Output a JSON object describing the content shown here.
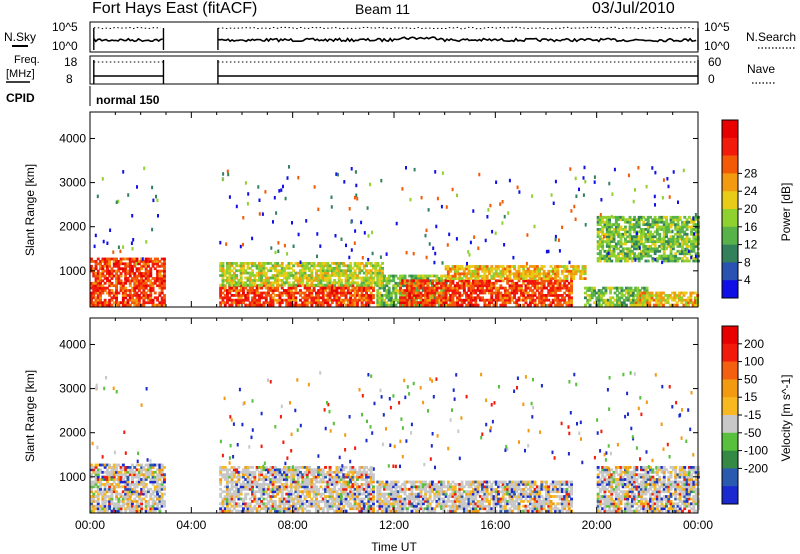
{
  "header": {
    "title": "Fort Hays East (fitACF)",
    "beam": "Beam 11",
    "date": "03/Jul/2010"
  },
  "status_panels": {
    "nsky_label": "N.Sky",
    "nsearch_label": "N.Search",
    "noise_tick_high": "10^5",
    "noise_tick_low": "10^0",
    "freq_label_1": "Freq.",
    "freq_label_2": "[MHz]",
    "freq_tick_high": "18",
    "freq_tick_low": "8",
    "nave_label": "Nave",
    "nave_tick_high": "60",
    "nave_tick_low": "0",
    "cpid_label": "CPID",
    "cpid_value": "normal 150"
  },
  "chart_data": [
    {
      "type": "heatmap",
      "panel": "power",
      "xlabel": "",
      "ylabel": "Slant Range [km]",
      "xlim": [
        0,
        24
      ],
      "ylim": [
        180,
        4600
      ],
      "y_ticks": [
        1000,
        2000,
        3000,
        4000
      ],
      "colorbar": {
        "label": "Power [dB]",
        "ticks": [
          "4",
          "8",
          "12",
          "16",
          "20",
          "24",
          "28"
        ],
        "colors": [
          "#1010e6",
          "#2a52b0",
          "#33815c",
          "#57b24a",
          "#8fd12e",
          "#e8cc18",
          "#f29a10",
          "#f25a08",
          "#f21a0a",
          "#e80000"
        ]
      },
      "regions": [
        {
          "t": [
            0.0,
            2.9
          ],
          "r": [
            200,
            1300
          ],
          "value": 26
        },
        {
          "t": [
            5.1,
            11.2
          ],
          "r": [
            200,
            650
          ],
          "value": 28
        },
        {
          "t": [
            5.1,
            11.5
          ],
          "r": [
            650,
            1200
          ],
          "value": 16
        },
        {
          "t": [
            11.3,
            14.0
          ],
          "r": [
            200,
            900
          ],
          "value": 12
        },
        {
          "t": [
            12.2,
            19.0
          ],
          "r": [
            200,
            800
          ],
          "value": 28
        },
        {
          "t": [
            14.0,
            19.5
          ],
          "r": [
            800,
            1100
          ],
          "value": 20
        },
        {
          "t": [
            19.5,
            22.0
          ],
          "r": [
            200,
            600
          ],
          "value": 12
        },
        {
          "t": [
            21.5,
            24.0
          ],
          "r": [
            200,
            500
          ],
          "value": 20
        },
        {
          "t": [
            20.0,
            24.0
          ],
          "r": [
            1200,
            2200
          ],
          "value": 12
        }
      ]
    },
    {
      "type": "heatmap",
      "panel": "velocity",
      "xlabel": "Time UT",
      "ylabel": "Slant Range [km]",
      "xlim": [
        0,
        24
      ],
      "ylim": [
        180,
        4600
      ],
      "x_ticks": [
        "00:00",
        "04:00",
        "08:00",
        "12:00",
        "16:00",
        "20:00",
        "00:00"
      ],
      "y_ticks": [
        1000,
        2000,
        3000,
        4000
      ],
      "colorbar": {
        "label": "Velocity [m s^-1]",
        "ticks": [
          "200",
          "100",
          "50",
          "15",
          "-15",
          "-50",
          "-100",
          "-200"
        ],
        "colors": [
          "#1a2ad0",
          "#2a5ab0",
          "#348a44",
          "#58c03c",
          "#c8c8c8",
          "#f8b820",
          "#f29a10",
          "#f26010",
          "#f21a0a",
          "#e80000"
        ]
      },
      "regions": [
        {
          "t": [
            0.0,
            2.9
          ],
          "r": [
            200,
            1300
          ],
          "value": 0
        },
        {
          "t": [
            5.1,
            11.2
          ],
          "r": [
            200,
            1200
          ],
          "value": 0
        },
        {
          "t": [
            11.3,
            19.0
          ],
          "r": [
            200,
            900
          ],
          "value": 0
        },
        {
          "t": [
            20.0,
            24.0
          ],
          "r": [
            200,
            1200
          ],
          "value": 0
        }
      ]
    }
  ]
}
